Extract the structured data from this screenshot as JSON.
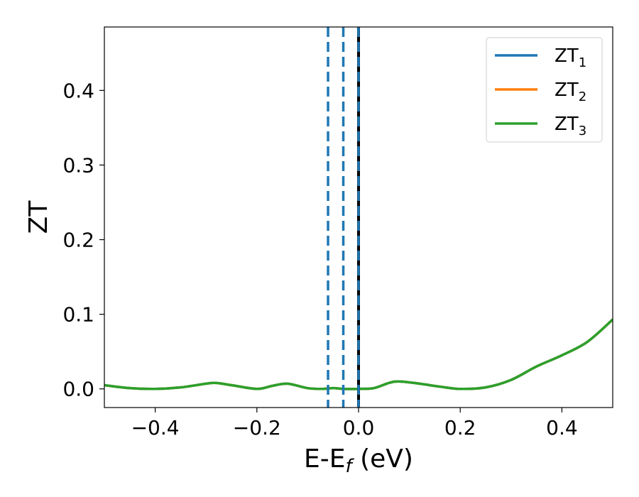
{
  "chart_data": {
    "type": "line",
    "xlabel": "E-E",
    "xlabel_sub": "f",
    "xlabel_unit": " (eV)",
    "ylabel": "ZT",
    "xlim": [
      -0.5,
      0.5
    ],
    "ylim": [
      -0.025,
      0.485
    ],
    "x_ticks": [
      -0.4,
      -0.2,
      0.0,
      0.2,
      0.4
    ],
    "x_tick_labels": [
      "−0.4",
      "−0.2",
      "0.0",
      "0.2",
      "0.4"
    ],
    "y_ticks": [
      0.0,
      0.1,
      0.2,
      0.3,
      0.4
    ],
    "y_tick_labels": [
      "0.0",
      "0.1",
      "0.2",
      "0.3",
      "0.4"
    ],
    "grid": false,
    "legend_position": "top-right",
    "series": [
      {
        "name": "ZT",
        "sub": "1",
        "color": "#1f77b4",
        "x": [
          -0.5,
          -0.45,
          -0.4,
          -0.35,
          -0.3,
          -0.28,
          -0.25,
          -0.2,
          -0.17,
          -0.14,
          -0.1,
          -0.07,
          -0.05,
          -0.03,
          0.0,
          0.03,
          0.06,
          0.08,
          0.12,
          0.16,
          0.2,
          0.25,
          0.3,
          0.35,
          0.4,
          0.45,
          0.5
        ],
        "y": [
          0.005,
          0.001,
          0.0,
          0.002,
          0.007,
          0.008,
          0.005,
          0.0,
          0.004,
          0.007,
          0.001,
          0.0,
          0.001,
          0.0,
          0.0,
          0.001,
          0.008,
          0.01,
          0.007,
          0.003,
          0.0,
          0.002,
          0.012,
          0.03,
          0.045,
          0.063,
          0.093
        ]
      },
      {
        "name": "ZT",
        "sub": "2",
        "color": "#ff7f0e",
        "x": [
          -0.5,
          -0.45,
          -0.4,
          -0.35,
          -0.3,
          -0.28,
          -0.25,
          -0.2,
          -0.17,
          -0.14,
          -0.1,
          -0.07,
          -0.05,
          -0.03,
          0.0,
          0.03,
          0.06,
          0.08,
          0.12,
          0.16,
          0.2,
          0.25,
          0.3,
          0.35,
          0.4,
          0.45,
          0.5
        ],
        "y": [
          0.005,
          0.001,
          0.0,
          0.002,
          0.007,
          0.008,
          0.005,
          0.0,
          0.004,
          0.007,
          0.001,
          0.0,
          0.001,
          0.0,
          0.0,
          0.001,
          0.008,
          0.01,
          0.007,
          0.003,
          0.0,
          0.002,
          0.012,
          0.03,
          0.045,
          0.063,
          0.093
        ]
      },
      {
        "name": "ZT",
        "sub": "3",
        "color": "#2ca02c",
        "x": [
          -0.5,
          -0.45,
          -0.4,
          -0.35,
          -0.3,
          -0.28,
          -0.25,
          -0.2,
          -0.17,
          -0.14,
          -0.1,
          -0.07,
          -0.05,
          -0.03,
          0.0,
          0.03,
          0.06,
          0.08,
          0.12,
          0.16,
          0.2,
          0.25,
          0.3,
          0.35,
          0.4,
          0.45,
          0.5
        ],
        "y": [
          0.005,
          0.001,
          0.0,
          0.002,
          0.007,
          0.008,
          0.005,
          0.0,
          0.004,
          0.007,
          0.001,
          0.0,
          0.001,
          0.0,
          0.0,
          0.001,
          0.008,
          0.01,
          0.007,
          0.003,
          0.0,
          0.002,
          0.012,
          0.03,
          0.045,
          0.063,
          0.093
        ]
      }
    ],
    "reference_lines": [
      {
        "axis": "x",
        "value": -0.06,
        "style": "dashed",
        "color": "#1f77b4"
      },
      {
        "axis": "x",
        "value": -0.03,
        "style": "dashed",
        "color": "#1f77b4"
      },
      {
        "axis": "x",
        "value": 0.0,
        "style": "solid",
        "color": "#000000"
      },
      {
        "axis": "x",
        "value": 0.0,
        "style": "dashed",
        "color": "#1f77b4"
      }
    ]
  }
}
